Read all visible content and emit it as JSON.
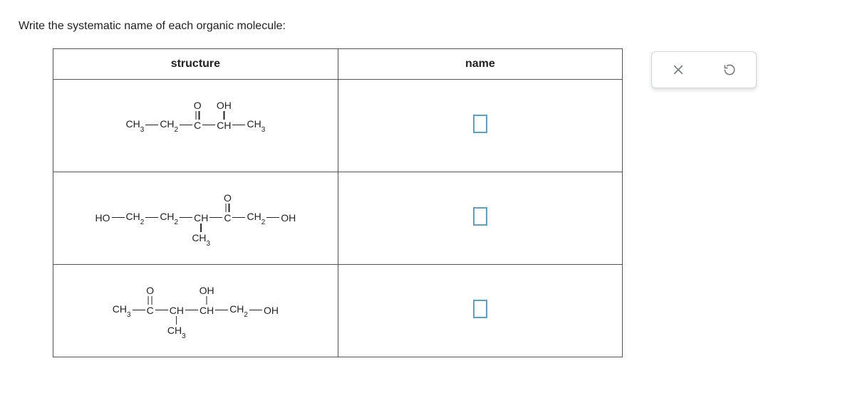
{
  "prompt": "Write the systematic name of each organic molecule:",
  "table": {
    "headers": {
      "structure": "structure",
      "name": "name"
    },
    "rows": [
      {
        "chain": [
          "CH3",
          "CH2",
          "C",
          "CH",
          "CH3"
        ],
        "sub_up": {
          "2": {
            "label": "O",
            "bond": "double"
          },
          "3": {
            "label": "OH",
            "bond": "single"
          }
        },
        "sub_down": {}
      },
      {
        "chain": [
          "HO",
          "CH2",
          "CH2",
          "CH",
          "C",
          "CH2",
          "OH"
        ],
        "sub_up": {
          "4": {
            "label": "O",
            "bond": "double"
          }
        },
        "sub_down": {
          "3": {
            "label": "CH3",
            "bond": "single"
          }
        }
      },
      {
        "chain": [
          "CH3",
          "C",
          "CH",
          "CH",
          "CH2",
          "OH"
        ],
        "sub_up": {
          "1": {
            "label": "O",
            "bond": "double"
          },
          "3": {
            "label": "OH",
            "bond": "single"
          }
        },
        "sub_down": {
          "2": {
            "label": "CH3",
            "bond": "single"
          }
        }
      }
    ]
  },
  "controls": {
    "close": "close",
    "reset": "reset"
  },
  "colors": {
    "border": "#555555",
    "input_border": "#5aa0c7",
    "panel_border": "#cfd6da",
    "icon": "#6b7478"
  }
}
